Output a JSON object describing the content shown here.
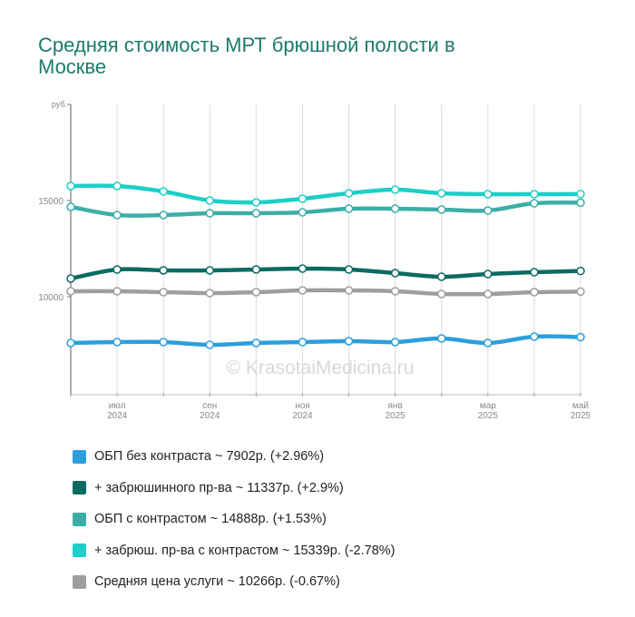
{
  "chart_data": {
    "type": "line",
    "title": "Средняя стоимость МРТ брюшной полости в Москве",
    "y_unit": "руб.",
    "watermark": "© KrasotaiMedicina.ru",
    "categories": [
      null,
      "июл\n2024",
      null,
      "сен\n2024",
      null,
      "ноя\n2024",
      null,
      "янв\n2025",
      null,
      "мар\n2025",
      null,
      "май\n2025"
    ],
    "ylim": [
      5000,
      20000
    ],
    "yticks": [
      10000,
      15000
    ],
    "grid": "x",
    "series": [
      {
        "name": "ОБП без контраста ~ 7902р. (+2.96%)",
        "color": "#2b9fdc",
        "values": [
          7594,
          7642,
          7642,
          7500,
          7594,
          7642,
          7689,
          7642,
          7830,
          7594,
          7924,
          7902
        ]
      },
      {
        "name": "+ забрюшинного пр-ва ~ 11337р. (+2.9%)",
        "color": "#0b6b61",
        "values": [
          10943,
          11415,
          11368,
          11368,
          11415,
          11462,
          11415,
          11226,
          11038,
          11179,
          11274,
          11337
        ]
      },
      {
        "name": "ОБП с контрастом ~ 14888р. (+1.53%)",
        "color": "#3caea8",
        "values": [
          14670,
          14245,
          14245,
          14340,
          14340,
          14387,
          14575,
          14575,
          14528,
          14481,
          14858,
          14888
        ]
      },
      {
        "name": "+ забрюш. пр-ва с контрастом ~ 15339р. (-2.78%)",
        "color": "#1ccfc8",
        "values": [
          15755,
          15755,
          15472,
          15000,
          14906,
          15094,
          15377,
          15566,
          15377,
          15330,
          15330,
          15339
        ]
      },
      {
        "name": "Средняя цена услуги ~ 10266р. (-0.67%)",
        "color": "#9e9e9e",
        "values": [
          10283,
          10283,
          10236,
          10189,
          10236,
          10330,
          10330,
          10283,
          10142,
          10142,
          10236,
          10266
        ]
      }
    ]
  }
}
